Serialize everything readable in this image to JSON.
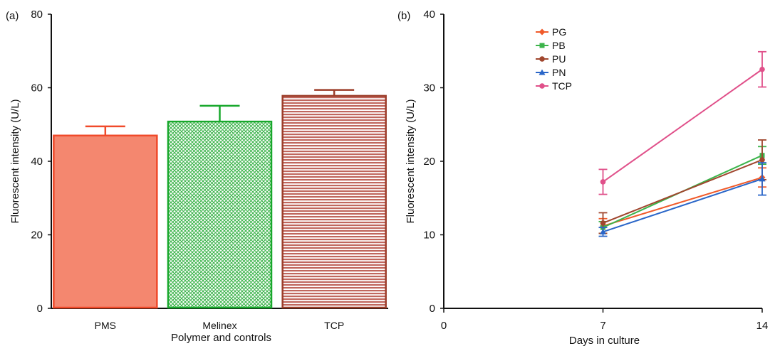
{
  "panels": {
    "a": {
      "letter": "(a)"
    },
    "b": {
      "letter": "(b)"
    }
  },
  "chart_data": [
    {
      "type": "bar",
      "panel": "(a)",
      "title": "",
      "xlabel": "Polymer and controls",
      "ylabel": "Fluorescent intensity (U/L)",
      "categories": [
        "PMS",
        "Melinex",
        "TCP"
      ],
      "values": [
        47,
        50.8,
        57.8
      ],
      "error_upper": [
        2.5,
        4.3,
        1.6
      ],
      "ylim": [
        0,
        80
      ],
      "yticks": [
        0,
        20,
        40,
        60,
        80
      ],
      "fill_colors": [
        "#f4876f",
        "#52c15a",
        "#b5655a"
      ],
      "stroke_colors": [
        "#f04a2a",
        "#18a82c",
        "#9c3d2a"
      ],
      "patterns": [
        "solid",
        "crosshatch",
        "horizontal-lines"
      ],
      "grid": false
    },
    {
      "type": "line",
      "panel": "(b)",
      "title": "",
      "xlabel": "Days in culture",
      "ylabel": "Fluorescent intensity (U/L)",
      "x": [
        7,
        14
      ],
      "xlim": [
        0,
        14
      ],
      "xticks": [
        0,
        7,
        14
      ],
      "ylim": [
        0,
        40
      ],
      "yticks": [
        0,
        10,
        20,
        30,
        40
      ],
      "grid": false,
      "legend_position": "top-center",
      "series": [
        {
          "name": "PG",
          "values": [
            11.2,
            17.8
          ],
          "errors": [
            1.0,
            1.3
          ],
          "color": "#f05a2a",
          "marker": "diamond"
        },
        {
          "name": "PB",
          "values": [
            11.0,
            20.8
          ],
          "errors": [
            0.8,
            1.2
          ],
          "color": "#3cb44b",
          "marker": "square"
        },
        {
          "name": "PU",
          "values": [
            11.6,
            20.2
          ],
          "errors": [
            1.4,
            2.7
          ],
          "color": "#a0462e",
          "marker": "circle"
        },
        {
          "name": "PN",
          "values": [
            10.4,
            17.6
          ],
          "errors": [
            0.6,
            2.2
          ],
          "color": "#2a66c8",
          "marker": "triangle"
        },
        {
          "name": "TCP",
          "values": [
            17.2,
            32.5
          ],
          "errors": [
            1.7,
            2.4
          ],
          "color": "#e0508a",
          "marker": "circle"
        }
      ]
    }
  ]
}
